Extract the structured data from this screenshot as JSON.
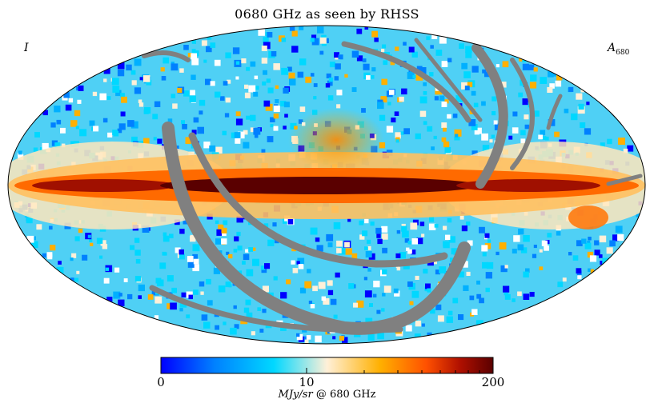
{
  "map": {
    "title": "0680 GHz as seen by RHSS",
    "corner_left": "I",
    "corner_right_base": "A",
    "corner_right_sub": "680",
    "projection": "Mollweide (all-sky)",
    "masked_color": "#808080"
  },
  "colorbar": {
    "tick_labels": [
      "0",
      "10",
      "200"
    ],
    "unit_label": "MJy/sr",
    "unit_suffix": "@ 680 GHz",
    "colors": [
      "#0000ff",
      "#0080ff",
      "#00d8ff",
      "#fff0d8",
      "#ffb000",
      "#ff5000",
      "#b01000",
      "#5a0000"
    ]
  }
}
